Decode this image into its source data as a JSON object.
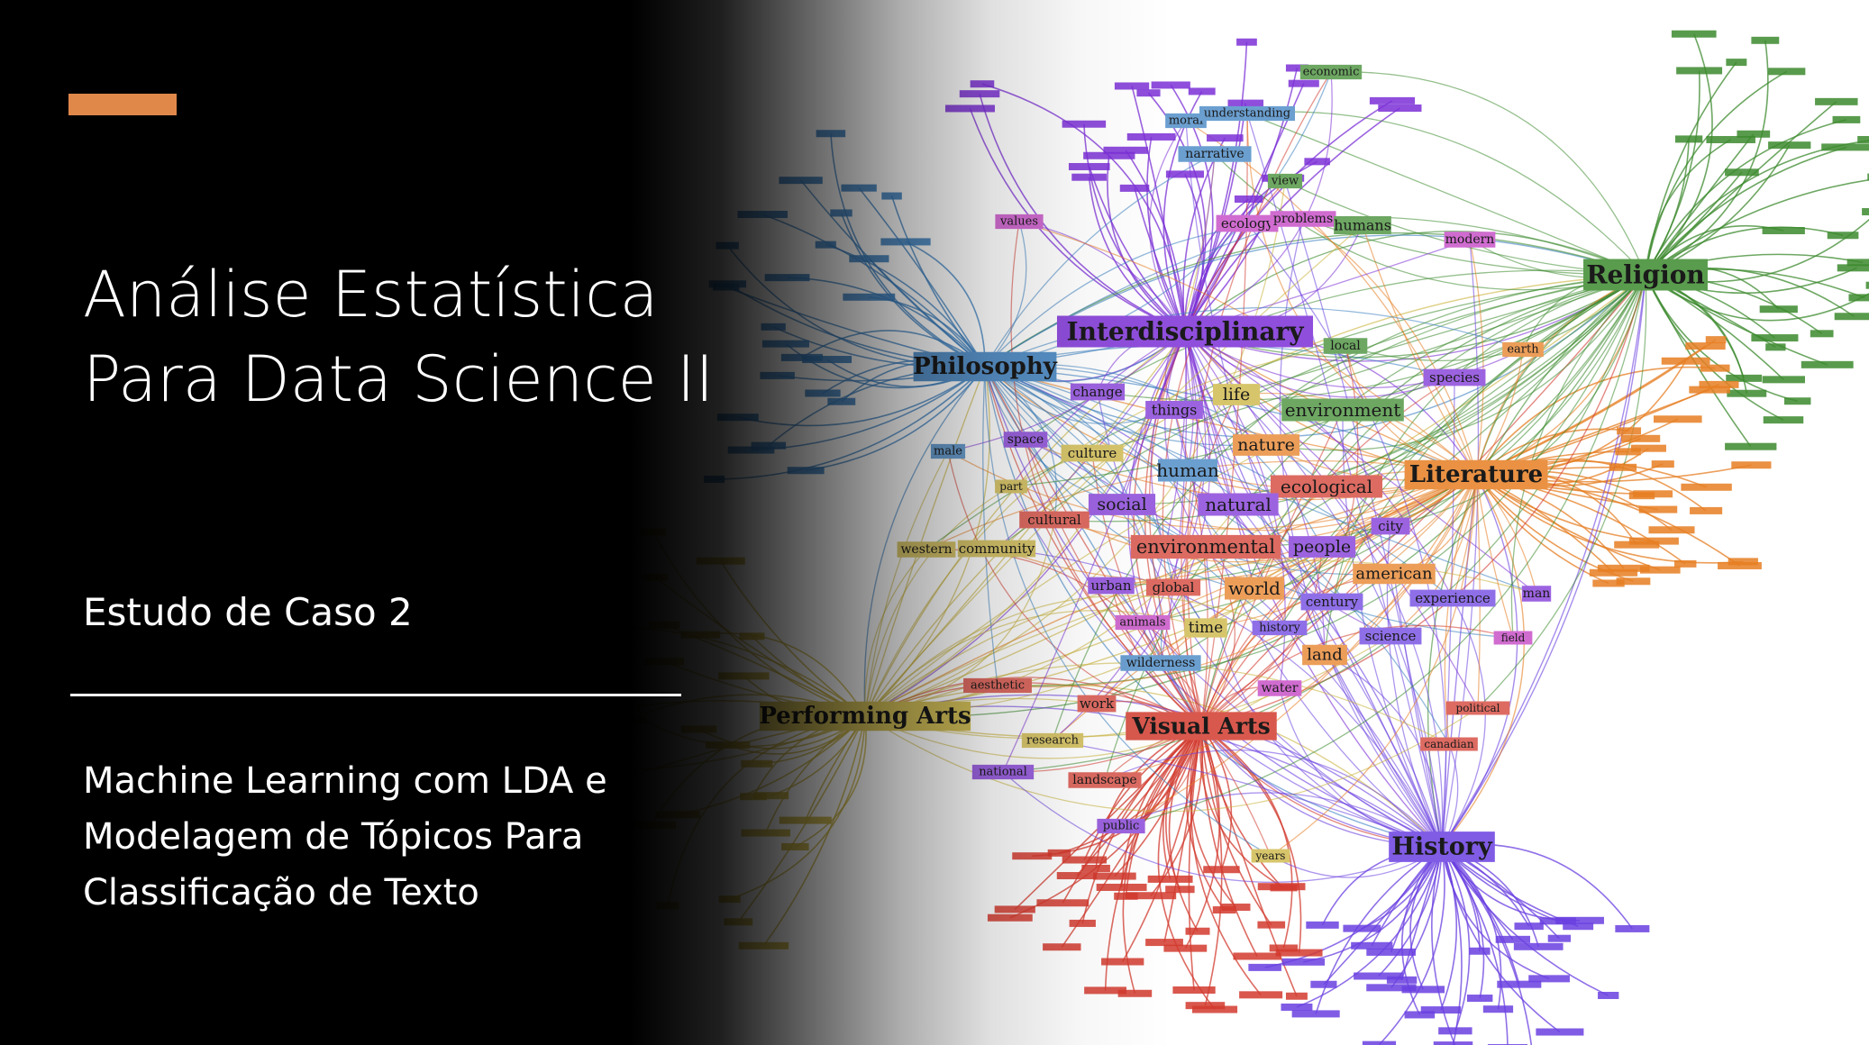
{
  "slide": {
    "accent_color": "#E0874A",
    "title_lines": [
      "Análise Estatística",
      "Para Data Science II"
    ],
    "subtitle": "Estudo de Caso 2",
    "description_lines": [
      "Machine Learning com LDA e",
      "Modelagem de Tópicos Para",
      "Classificação de Texto"
    ]
  },
  "network": {
    "hubs": [
      {
        "id": "interdisciplinary",
        "label": "Interdisciplinary",
        "color": "#7B2FD6"
      },
      {
        "id": "religion",
        "label": "Religion",
        "color": "#3C8A2E"
      },
      {
        "id": "philosophy",
        "label": "Philosophy",
        "color": "#3A7FC0"
      },
      {
        "id": "literature",
        "label": "Literature",
        "color": "#E67E22"
      },
      {
        "id": "performing_arts",
        "label": "Performing Arts",
        "color": "#C9B23A"
      },
      {
        "id": "visual_arts",
        "label": "Visual Arts",
        "color": "#D23A2E"
      },
      {
        "id": "history",
        "label": "History",
        "color": "#6A3FE0"
      }
    ],
    "terms": [
      {
        "label": "environment",
        "color": "#3C8A2E"
      },
      {
        "label": "environmental",
        "color": "#D23A2E"
      },
      {
        "label": "ecological",
        "color": "#D23A2E"
      },
      {
        "label": "natural",
        "color": "#7B2FD6"
      },
      {
        "label": "social",
        "color": "#7B2FD6"
      },
      {
        "label": "human",
        "color": "#3A7FC0"
      },
      {
        "label": "nature",
        "color": "#E67E22"
      },
      {
        "label": "life",
        "color": "#C9B23A"
      },
      {
        "label": "things",
        "color": "#7B2FD6"
      },
      {
        "label": "change",
        "color": "#7B2FD6"
      },
      {
        "label": "culture",
        "color": "#C9B23A"
      },
      {
        "label": "space",
        "color": "#7B2FD6"
      },
      {
        "label": "cultural",
        "color": "#D23A2E"
      },
      {
        "label": "community",
        "color": "#C9B23A"
      },
      {
        "label": "western",
        "color": "#C9B23A"
      },
      {
        "label": "world",
        "color": "#E67E22"
      },
      {
        "label": "people",
        "color": "#7B2FD6"
      },
      {
        "label": "american",
        "color": "#E67E22"
      },
      {
        "label": "century",
        "color": "#6A3FE0"
      },
      {
        "label": "experience",
        "color": "#6A3FE0"
      },
      {
        "label": "land",
        "color": "#E67E22"
      },
      {
        "label": "science",
        "color": "#6A3FE0"
      },
      {
        "label": "time",
        "color": "#C9B23A"
      },
      {
        "label": "global",
        "color": "#D23A2E"
      },
      {
        "label": "urban",
        "color": "#7B2FD6"
      },
      {
        "label": "animals",
        "color": "#C03BC0"
      },
      {
        "label": "wilderness",
        "color": "#3A7FC0"
      },
      {
        "label": "work",
        "color": "#D23A2E"
      },
      {
        "label": "landscape",
        "color": "#D23A2E"
      },
      {
        "label": "water",
        "color": "#C03BC0"
      },
      {
        "label": "species",
        "color": "#7B2FD6"
      },
      {
        "label": "local",
        "color": "#3C8A2E"
      },
      {
        "label": "ecology",
        "color": "#C03BC0"
      },
      {
        "label": "problems",
        "color": "#C03BC0"
      },
      {
        "label": "humans",
        "color": "#3C8A2E"
      },
      {
        "label": "modern",
        "color": "#C03BC0"
      },
      {
        "label": "narrative",
        "color": "#3A7FC0"
      },
      {
        "label": "moral",
        "color": "#3A7FC0"
      },
      {
        "label": "understanding",
        "color": "#3A7FC0"
      },
      {
        "label": "economic",
        "color": "#3C8A2E"
      },
      {
        "label": "city",
        "color": "#7B2FD6"
      },
      {
        "label": "earth",
        "color": "#E67E22"
      },
      {
        "label": "man",
        "color": "#7B2FD6"
      },
      {
        "label": "male",
        "color": "#3A7FC0"
      },
      {
        "label": "values",
        "color": "#C03BC0"
      },
      {
        "label": "view",
        "color": "#3C8A2E"
      },
      {
        "label": "field",
        "color": "#C03BC0"
      },
      {
        "label": "political",
        "color": "#D23A2E"
      },
      {
        "label": "canadian",
        "color": "#D23A2E"
      },
      {
        "label": "public",
        "color": "#7B2FD6"
      },
      {
        "label": "research",
        "color": "#C9B23A"
      },
      {
        "label": "aesthetic",
        "color": "#D23A2E"
      },
      {
        "label": "national",
        "color": "#7B2FD6"
      },
      {
        "label": "history",
        "color": "#6A3FE0"
      },
      {
        "label": "years",
        "color": "#C9B23A"
      },
      {
        "label": "part",
        "color": "#C9B23A"
      }
    ]
  }
}
